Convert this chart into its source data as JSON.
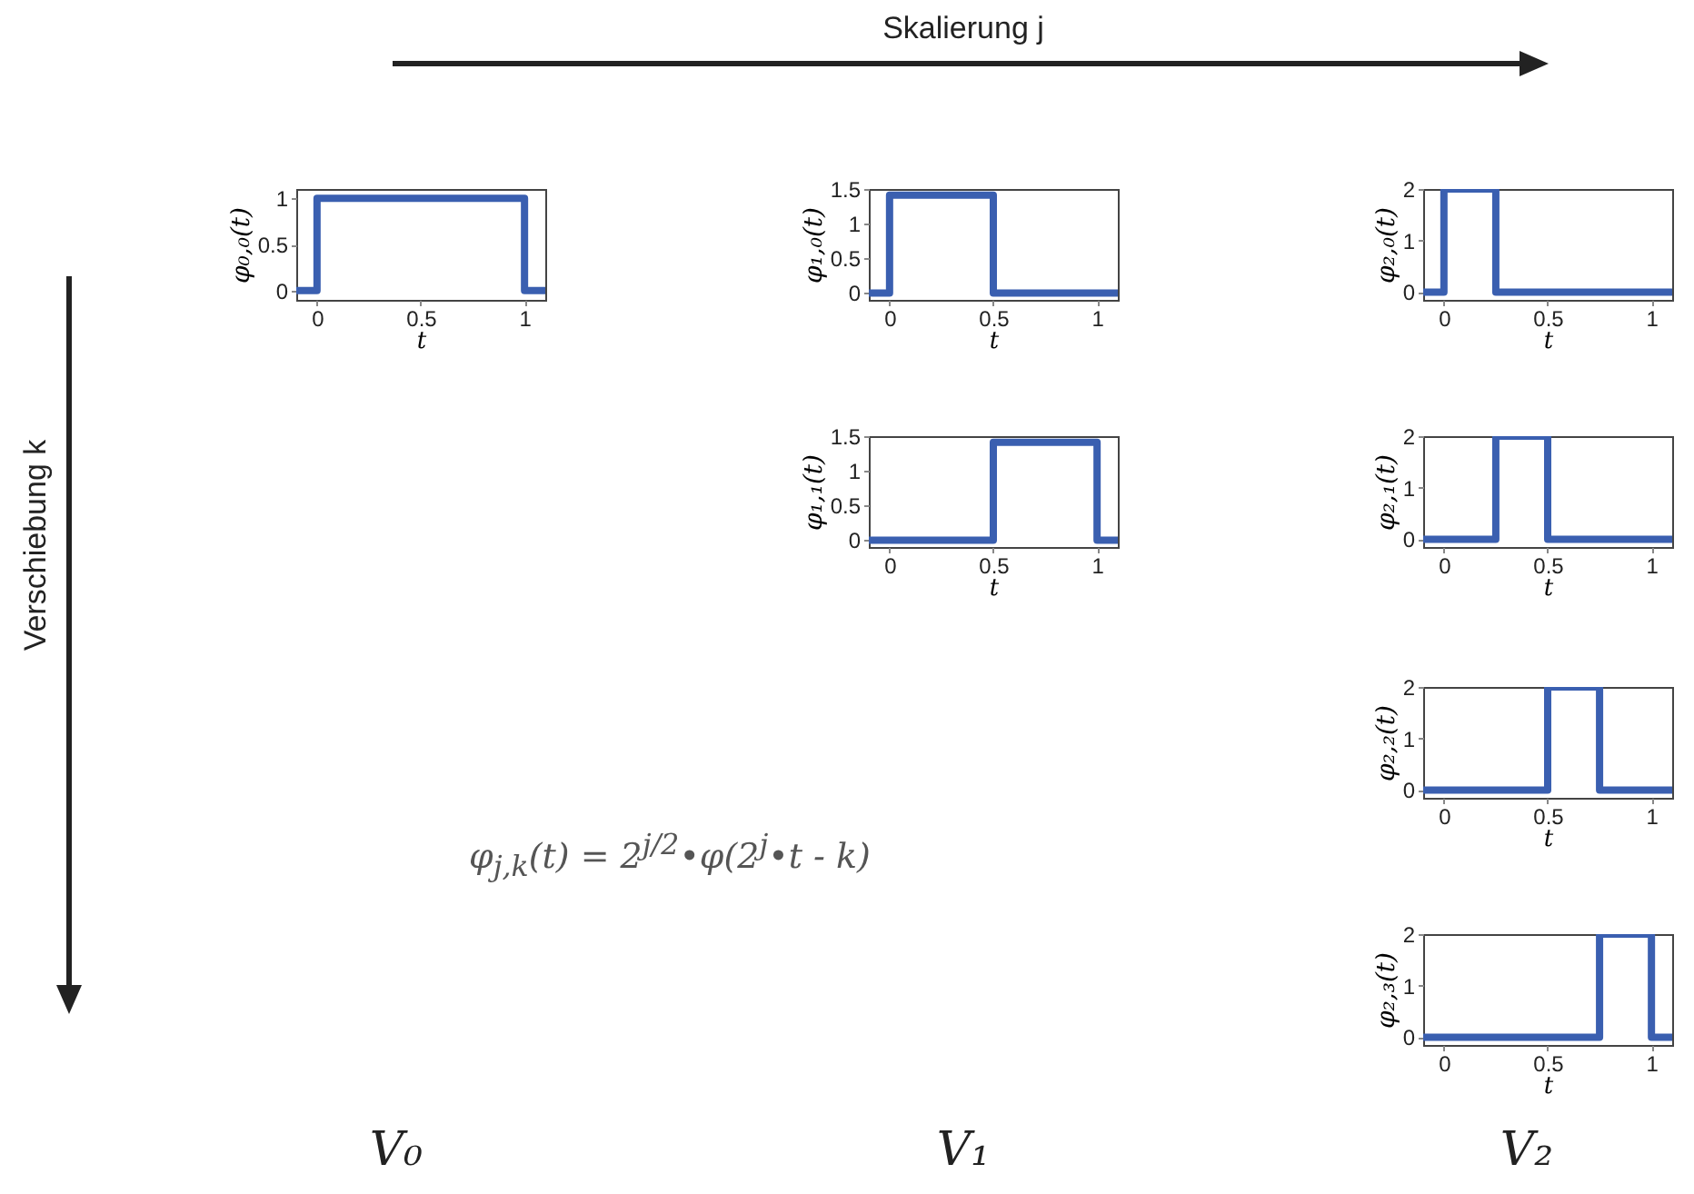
{
  "chart_data": [
    {
      "type": "step",
      "xlabel": "t",
      "ylabel": "φ₀,₀(t)",
      "x": [
        -0.1,
        0,
        1,
        1.1
      ],
      "series": [
        {
          "color": "#3a5fb0",
          "values": [
            0,
            1,
            0,
            0
          ]
        }
      ],
      "xlim": [
        -0.1,
        1.1
      ],
      "ylim": [
        -0.1,
        1.1
      ],
      "xticks": [
        0,
        0.5,
        1
      ],
      "yticks": [
        0,
        0.5,
        1
      ],
      "marker": "none",
      "annotations": [
        "Skalierung j",
        "Verschiebung k",
        "φ$_{j,k}$(t) = 2$^{j/2}$•φ(2$^{j}$•t - k)",
        "V₀"
      ]
    },
    {
      "type": "step",
      "xlabel": "t",
      "ylabel": "φ₁,₀(t)",
      "x": [
        -0.1,
        0,
        0.5,
        1.1
      ],
      "series": [
        {
          "color": "#3a5fb0",
          "values": [
            0,
            1.41,
            0,
            0
          ]
        }
      ],
      "xlim": [
        -0.1,
        1.1
      ],
      "ylim": [
        -0.1,
        1.5
      ],
      "xticks": [
        0,
        0.5,
        1
      ],
      "yticks": [
        0,
        0.5,
        1,
        1.5
      ],
      "marker": "none",
      "annotations": [
        "V₁"
      ]
    },
    {
      "type": "step",
      "xlabel": "t",
      "ylabel": "φ₁,₁(t)",
      "x": [
        -0.1,
        0.5,
        1,
        1.1
      ],
      "series": [
        {
          "color": "#3a5fb0",
          "values": [
            0,
            1.41,
            0,
            0
          ]
        }
      ],
      "xlim": [
        -0.1,
        1.1
      ],
      "ylim": [
        -0.1,
        1.5
      ],
      "xticks": [
        0,
        0.5,
        1
      ],
      "yticks": [
        0,
        0.5,
        1,
        1.5
      ],
      "marker": "none"
    },
    {
      "type": "step",
      "xlabel": "t",
      "ylabel": "φ₂,₀(t)",
      "x": [
        -0.1,
        0,
        0.25,
        1.1
      ],
      "series": [
        {
          "color": "#3a5fb0",
          "values": [
            0,
            2,
            0,
            0
          ]
        }
      ],
      "xlim": [
        -0.1,
        1.1
      ],
      "ylim": [
        -0.15,
        2
      ],
      "xticks": [
        0,
        0.5,
        1
      ],
      "yticks": [
        0,
        1,
        2
      ],
      "marker": "none",
      "annotations": [
        "V₂"
      ]
    },
    {
      "type": "step",
      "xlabel": "t",
      "ylabel": "φ₂,₁(t)",
      "x": [
        -0.1,
        0.25,
        0.5,
        1.1
      ],
      "series": [
        {
          "color": "#3a5fb0",
          "values": [
            0,
            2,
            0,
            0
          ]
        }
      ],
      "xlim": [
        -0.1,
        1.1
      ],
      "ylim": [
        -0.15,
        2
      ],
      "xticks": [
        0,
        0.5,
        1
      ],
      "yticks": [
        0,
        1,
        2
      ],
      "marker": "none"
    },
    {
      "type": "step",
      "xlabel": "t",
      "ylabel": "φ₂,₂(t)",
      "x": [
        -0.1,
        0.5,
        0.75,
        1.1
      ],
      "series": [
        {
          "color": "#3a5fb0",
          "values": [
            0,
            2,
            0,
            0
          ]
        }
      ],
      "xlim": [
        -0.1,
        1.1
      ],
      "ylim": [
        -0.15,
        2
      ],
      "xticks": [
        0,
        0.5,
        1
      ],
      "yticks": [
        0,
        1,
        2
      ],
      "marker": "none"
    },
    {
      "type": "step",
      "xlabel": "t",
      "ylabel": "φ₂,₃(t)",
      "x": [
        -0.1,
        0.75,
        1,
        1.1
      ],
      "series": [
        {
          "color": "#3a5fb0",
          "values": [
            0,
            2,
            0,
            0
          ]
        }
      ],
      "xlim": [
        -0.1,
        1.1
      ],
      "ylim": [
        -0.15,
        2
      ],
      "xticks": [
        0,
        0.5,
        1
      ],
      "yticks": [
        0,
        1,
        2
      ],
      "marker": "none"
    }
  ]
}
